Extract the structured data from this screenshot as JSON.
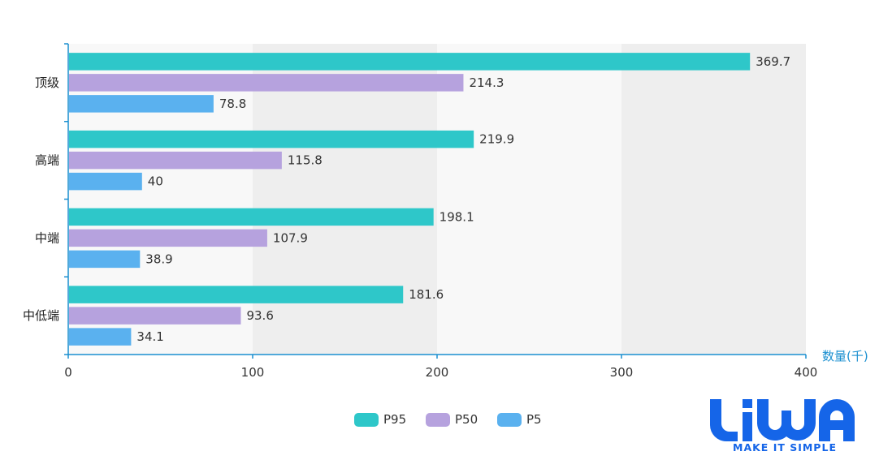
{
  "chart_data": {
    "type": "bar",
    "orientation": "horizontal",
    "categories": [
      "顶级",
      "高端",
      "中端",
      "中低端"
    ],
    "series": [
      {
        "name": "P95",
        "color": "#2ec7c9",
        "values": [
          369.7,
          219.9,
          198.1,
          181.6
        ]
      },
      {
        "name": "P50",
        "color": "#b6a2de",
        "values": [
          214.3,
          115.8,
          107.9,
          93.6
        ]
      },
      {
        "name": "P5",
        "color": "#5ab1ef",
        "values": [
          78.8,
          40,
          38.9,
          34.1
        ]
      }
    ],
    "xlabel": "数量(千)",
    "xlim": [
      0,
      400
    ],
    "xticks": [
      0,
      100,
      200,
      300,
      400
    ],
    "legend_position": "bottom-center",
    "split_area": true,
    "axis_color": "#1a8fd0"
  },
  "logo": {
    "brand": "LiWA",
    "tagline": "MAKE IT SIMPLE",
    "color": "#1565e8"
  }
}
